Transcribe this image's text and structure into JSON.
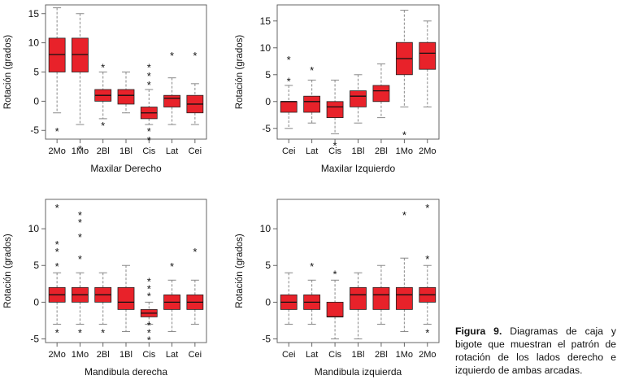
{
  "caption": {
    "label": "Figura 9.",
    "text": "Diagramas de caja y bigote que muestran el patrón de rotación de los lados derecho e izquierdo de ambas arcadas."
  },
  "colors": {
    "box_fill": "#e8222a",
    "box_stroke": "#222222",
    "whisker": "#888888"
  },
  "chart_data": [
    {
      "type": "boxplot",
      "title": "Maxilar Derecho",
      "xlabel": "Maxilar Derecho",
      "ylabel": "Rotación (grados)",
      "ylim": [
        -6.5,
        16.5
      ],
      "yticks": [
        -5,
        0,
        5,
        10,
        15
      ],
      "tick_labels": [
        "-5",
        "0",
        "5",
        "10",
        "15"
      ],
      "categories": [
        "2Mo",
        "1Mo",
        "2Bl",
        "1Bl",
        "Cis",
        "Lat",
        "Cei"
      ],
      "boxes": [
        {
          "min": -2,
          "q1": 5,
          "median": 8,
          "q3": 10.8,
          "max": 16,
          "outliers": [
            -5
          ]
        },
        {
          "min": -4,
          "q1": 5,
          "median": 8,
          "q3": 10.8,
          "max": 15,
          "outliers": [
            -8
          ]
        },
        {
          "min": -3,
          "q1": 0,
          "median": 1,
          "q3": 2,
          "max": 5,
          "outliers": [
            6,
            -4
          ]
        },
        {
          "min": -2,
          "q1": -0.5,
          "median": 1,
          "q3": 2,
          "max": 5,
          "outliers": []
        },
        {
          "min": -4,
          "q1": -3,
          "median": -2,
          "q3": -1,
          "max": 2,
          "outliers": [
            6,
            4.5,
            3,
            -5,
            -6.5
          ]
        },
        {
          "min": -4,
          "q1": -1,
          "median": 0.5,
          "q3": 1,
          "max": 4,
          "outliers": [
            8
          ]
        },
        {
          "min": -4,
          "q1": -2,
          "median": -0.5,
          "q3": 1,
          "max": 3,
          "outliers": [
            8
          ]
        }
      ]
    },
    {
      "type": "boxplot",
      "title": "Maxilar Izquierdo",
      "xlabel": "Maxilar Izquierdo",
      "ylabel": "Rotación (grados)",
      "ylim": [
        -7,
        18
      ],
      "yticks": [
        -5,
        0,
        5,
        10,
        15
      ],
      "tick_labels": [
        "-5",
        "0",
        "5",
        "10",
        "15"
      ],
      "categories": [
        "Cei",
        "Lat",
        "Cis",
        "1Bl",
        "2Bl",
        "1Mo",
        "2Mo"
      ],
      "boxes": [
        {
          "min": -5,
          "q1": -2,
          "median": 0,
          "q3": 0,
          "max": 3,
          "outliers": [
            8,
            4
          ]
        },
        {
          "min": -4,
          "q1": -2,
          "median": 0,
          "q3": 1,
          "max": 4,
          "outliers": [
            6
          ]
        },
        {
          "min": -6,
          "q1": -3,
          "median": -1,
          "q3": 0,
          "max": 4,
          "outliers": [
            -8
          ]
        },
        {
          "min": -4,
          "q1": -1,
          "median": 1,
          "q3": 2,
          "max": 5,
          "outliers": []
        },
        {
          "min": -3,
          "q1": 0,
          "median": 2,
          "q3": 3,
          "max": 7,
          "outliers": []
        },
        {
          "min": -1,
          "q1": 5,
          "median": 8,
          "q3": 11,
          "max": 17,
          "outliers": [
            -6
          ]
        },
        {
          "min": -1,
          "q1": 6,
          "median": 9,
          "q3": 11,
          "max": 15,
          "outliers": []
        }
      ]
    },
    {
      "type": "boxplot",
      "title": "Mandibula derecha",
      "xlabel": "Mandibula derecha",
      "ylabel": "Rotación (grados)",
      "ylim": [
        -5.5,
        14
      ],
      "yticks": [
        -5,
        0,
        5,
        10
      ],
      "tick_labels": [
        "-5",
        "0",
        "5",
        "10"
      ],
      "categories": [
        "2Mo",
        "1Mo",
        "2Bl",
        "1Bl",
        "Cis",
        "Lat",
        "Cei"
      ],
      "boxes": [
        {
          "min": -3,
          "q1": 0,
          "median": 1,
          "q3": 2,
          "max": 4,
          "outliers": [
            13,
            8,
            7,
            5,
            -4
          ]
        },
        {
          "min": -3,
          "q1": 0,
          "median": 1,
          "q3": 2,
          "max": 4,
          "outliers": [
            12,
            11,
            9,
            6,
            -4
          ]
        },
        {
          "min": -3,
          "q1": 0,
          "median": 1,
          "q3": 2,
          "max": 4,
          "outliers": [
            -4
          ]
        },
        {
          "min": -4,
          "q1": -1,
          "median": 0,
          "q3": 2,
          "max": 5,
          "outliers": []
        },
        {
          "min": -3,
          "q1": -2,
          "median": -1.5,
          "q3": -1,
          "max": 0,
          "outliers": [
            3,
            2,
            1,
            -3,
            -4,
            -5
          ]
        },
        {
          "min": -4,
          "q1": -1,
          "median": 0,
          "q3": 1,
          "max": 3,
          "outliers": [
            5
          ]
        },
        {
          "min": -3,
          "q1": -1,
          "median": 0,
          "q3": 1,
          "max": 3,
          "outliers": [
            7
          ]
        }
      ]
    },
    {
      "type": "boxplot",
      "title": "Mandibula izquierda",
      "xlabel": "Mandibula izquierda",
      "ylabel": "Rotación (grados)",
      "ylim": [
        -5.5,
        14
      ],
      "yticks": [
        -5,
        0,
        5,
        10
      ],
      "tick_labels": [
        "-5",
        "0",
        "5",
        "10"
      ],
      "categories": [
        "Cei",
        "Lat",
        "Cis",
        "1Bl",
        "2Bl",
        "1Mo",
        "2Mo"
      ],
      "boxes": [
        {
          "min": -3,
          "q1": -1,
          "median": 0,
          "q3": 1,
          "max": 4,
          "outliers": []
        },
        {
          "min": -3,
          "q1": -1,
          "median": 0,
          "q3": 1,
          "max": 3,
          "outliers": [
            5
          ]
        },
        {
          "min": -5,
          "q1": -2,
          "median": -2,
          "q3": 0,
          "max": 3,
          "outliers": [
            4
          ]
        },
        {
          "min": -5,
          "q1": -1,
          "median": 1,
          "q3": 2,
          "max": 4,
          "outliers": []
        },
        {
          "min": -3,
          "q1": -1,
          "median": 1,
          "q3": 2,
          "max": 5,
          "outliers": []
        },
        {
          "min": -4,
          "q1": -1,
          "median": 1,
          "q3": 2,
          "max": 6,
          "outliers": [
            12
          ]
        },
        {
          "min": -3,
          "q1": 0,
          "median": 1,
          "q3": 2,
          "max": 5,
          "outliers": [
            13,
            6,
            -4
          ]
        }
      ]
    }
  ]
}
